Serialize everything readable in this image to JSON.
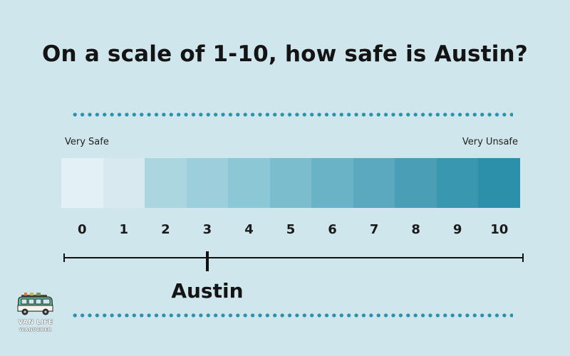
{
  "title": "On a scale of 1-10, how safe is Austin?",
  "scale": {
    "left_label": "Very Safe",
    "right_label": "Very Unsafe",
    "numbers": [
      "0",
      "1",
      "2",
      "3",
      "4",
      "5",
      "6",
      "7",
      "8",
      "9",
      "10"
    ],
    "colors": [
      "#e3f0f5",
      "#d8eaef",
      "#acd6df",
      "#9ccfdb",
      "#8cc7d6",
      "#7bbccd",
      "#6ab3c6",
      "#5aa9bf",
      "#4a9fb7",
      "#3a97b0",
      "#2c90ab"
    ]
  },
  "rating": {
    "city": "Austin",
    "value": 3
  },
  "logo": {
    "line1": "VAN LIFE",
    "line2": "WANDERER",
    "icon": "van-icon"
  },
  "accent_color": "#2b90ab"
}
